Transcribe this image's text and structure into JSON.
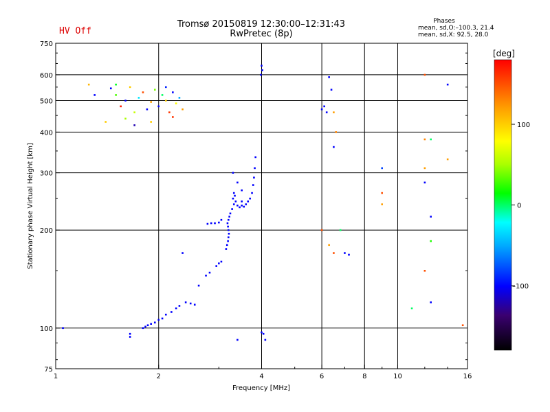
{
  "header": {
    "title": "Tromsø 20150819 12:30:00–12:31:43",
    "subtitle": "RwPretec (8p)",
    "status": "HV Off",
    "phases_title": "Phases",
    "phases_line1": "mean, sd,O:–100.3, 21.4",
    "phases_line2": "mean, sd,X:  92.5, 28.0"
  },
  "colorbar": {
    "unit": "[deg]",
    "ticks": [
      "100",
      "0",
      "–100"
    ],
    "tick_values": [
      100,
      0,
      -100
    ],
    "range": [
      -180,
      180
    ]
  },
  "chart_data": {
    "type": "scatter",
    "title": "Tromsø 20150819 12:30:00–12:31:43",
    "subtitle": "RwPretec (8p)",
    "xlabel": "Frequency [MHz]",
    "ylabel": "Stationary phase Virtual Height [km]",
    "x_scale": "log",
    "y_scale": "log",
    "xlim": [
      1,
      16
    ],
    "ylim": [
      75,
      750
    ],
    "x_ticks": [
      1,
      2,
      4,
      6,
      8,
      10,
      16
    ],
    "x_tick_labels": [
      "1",
      "2",
      "4",
      "6",
      "8",
      "10",
      "16"
    ],
    "y_ticks": [
      75,
      100,
      200,
      300,
      400,
      500,
      600,
      750
    ],
    "y_tick_labels": [
      "75",
      "100",
      "200",
      "300",
      "400",
      "500",
      "600",
      "750"
    ],
    "grid_x": [
      2,
      4,
      6,
      8,
      10
    ],
    "grid_y": [
      100,
      200,
      300,
      400,
      500,
      600
    ],
    "grid": true,
    "colorbar_label": "[deg]",
    "colorbar_range": [
      -180,
      180
    ],
    "points": [
      [
        1.05,
        100,
        -100
      ],
      [
        1.65,
        96,
        -100
      ],
      [
        1.65,
        94,
        -100
      ],
      [
        1.8,
        100,
        -100
      ],
      [
        1.83,
        101,
        -100
      ],
      [
        1.86,
        102,
        -100
      ],
      [
        1.9,
        103,
        -100
      ],
      [
        1.95,
        104,
        -100
      ],
      [
        2.0,
        106,
        -100
      ],
      [
        2.05,
        107,
        -100
      ],
      [
        2.1,
        110,
        -100
      ],
      [
        2.18,
        112,
        -100
      ],
      [
        2.25,
        115,
        -100
      ],
      [
        2.3,
        117,
        -100
      ],
      [
        2.4,
        120,
        -100
      ],
      [
        2.48,
        119,
        -100
      ],
      [
        2.55,
        118,
        -100
      ],
      [
        2.62,
        135,
        -100
      ],
      [
        2.75,
        145,
        -100
      ],
      [
        2.82,
        148,
        -100
      ],
      [
        2.95,
        155,
        -100
      ],
      [
        3.0,
        158,
        -100
      ],
      [
        3.05,
        160,
        -100
      ],
      [
        2.35,
        170,
        -100
      ],
      [
        2.78,
        209,
        -100
      ],
      [
        2.85,
        210,
        -100
      ],
      [
        2.92,
        210,
        -100
      ],
      [
        3.0,
        211,
        -100
      ],
      [
        3.05,
        215,
        -100
      ],
      [
        3.15,
        175,
        -100
      ],
      [
        3.17,
        180,
        -100
      ],
      [
        3.19,
        185,
        -100
      ],
      [
        3.2,
        190,
        -100
      ],
      [
        3.21,
        195,
        -100
      ],
      [
        3.2,
        200,
        -100
      ],
      [
        3.19,
        205,
        -100
      ],
      [
        3.18,
        210,
        -100
      ],
      [
        3.2,
        215,
        -100
      ],
      [
        3.22,
        220,
        -100
      ],
      [
        3.24,
        225,
        -100
      ],
      [
        3.28,
        232,
        -100
      ],
      [
        3.32,
        240,
        -100
      ],
      [
        3.3,
        250,
        -100
      ],
      [
        3.32,
        260,
        -100
      ],
      [
        3.34,
        255,
        -100
      ],
      [
        3.36,
        245,
        -100
      ],
      [
        3.4,
        238,
        -100
      ],
      [
        3.45,
        235,
        -100
      ],
      [
        3.5,
        238,
        -100
      ],
      [
        3.55,
        236,
        -100
      ],
      [
        3.6,
        240,
        -100
      ],
      [
        3.65,
        245,
        -100
      ],
      [
        3.7,
        250,
        -100
      ],
      [
        3.75,
        260,
        -100
      ],
      [
        3.78,
        275,
        -100
      ],
      [
        3.8,
        290,
        -100
      ],
      [
        3.82,
        310,
        -100
      ],
      [
        3.84,
        335,
        -100
      ],
      [
        3.5,
        265,
        -100
      ],
      [
        3.5,
        245,
        -100
      ],
      [
        3.3,
        300,
        -100
      ],
      [
        3.4,
        280,
        -100
      ],
      [
        3.4,
        92,
        -100
      ],
      [
        4.0,
        640,
        -100
      ],
      [
        4.02,
        620,
        -100
      ],
      [
        3.98,
        600,
        -100
      ],
      [
        4.0,
        97,
        -100
      ],
      [
        4.05,
        96,
        -100
      ],
      [
        4.1,
        92,
        -100
      ],
      [
        1.4,
        430,
        100
      ],
      [
        1.45,
        545,
        -100
      ],
      [
        1.5,
        520,
        30
      ],
      [
        1.55,
        480,
        170
      ],
      [
        1.6,
        500,
        -100
      ],
      [
        1.65,
        550,
        100
      ],
      [
        1.7,
        460,
        60
      ],
      [
        1.75,
        510,
        -30
      ],
      [
        1.8,
        530,
        150
      ],
      [
        1.85,
        470,
        -100
      ],
      [
        1.9,
        495,
        120
      ],
      [
        1.95,
        540,
        40
      ],
      [
        2.0,
        480,
        -100
      ],
      [
        2.05,
        520,
        0
      ],
      [
        2.1,
        500,
        100
      ],
      [
        2.15,
        460,
        160
      ],
      [
        2.2,
        530,
        -100
      ],
      [
        2.25,
        490,
        80
      ],
      [
        2.3,
        510,
        -50
      ],
      [
        2.35,
        470,
        120
      ],
      [
        1.5,
        560,
        10
      ],
      [
        1.7,
        420,
        -120
      ],
      [
        1.9,
        430,
        100
      ],
      [
        2.1,
        550,
        -90
      ],
      [
        2.2,
        445,
        160
      ],
      [
        1.3,
        520,
        -100
      ],
      [
        1.25,
        560,
        110
      ],
      [
        1.6,
        440,
        50
      ],
      [
        6.0,
        470,
        -100
      ],
      [
        6.1,
        480,
        -100
      ],
      [
        6.2,
        460,
        -100
      ],
      [
        6.3,
        590,
        -100
      ],
      [
        6.4,
        540,
        -100
      ],
      [
        6.5,
        460,
        120
      ],
      [
        6.5,
        360,
        -100
      ],
      [
        6.6,
        400,
        130
      ],
      [
        6.0,
        200,
        150
      ],
      [
        6.3,
        180,
        120
      ],
      [
        6.5,
        170,
        150
      ],
      [
        7.0,
        170,
        -100
      ],
      [
        7.2,
        168,
        -100
      ],
      [
        6.8,
        200,
        0
      ],
      [
        9.0,
        310,
        -80
      ],
      [
        9.0,
        260,
        150
      ],
      [
        9.0,
        240,
        120
      ],
      [
        12.0,
        310,
        120
      ],
      [
        12.0,
        600,
        150
      ],
      [
        12.0,
        380,
        130
      ],
      [
        12.5,
        380,
        0
      ],
      [
        12.0,
        280,
        -100
      ],
      [
        12.5,
        220,
        -100
      ],
      [
        12.5,
        185,
        20
      ],
      [
        12.0,
        150,
        150
      ],
      [
        12.5,
        120,
        -100
      ],
      [
        11.0,
        115,
        0
      ],
      [
        14.0,
        330,
        120
      ],
      [
        14.0,
        560,
        -100
      ],
      [
        15.5,
        102,
        150
      ]
    ]
  }
}
